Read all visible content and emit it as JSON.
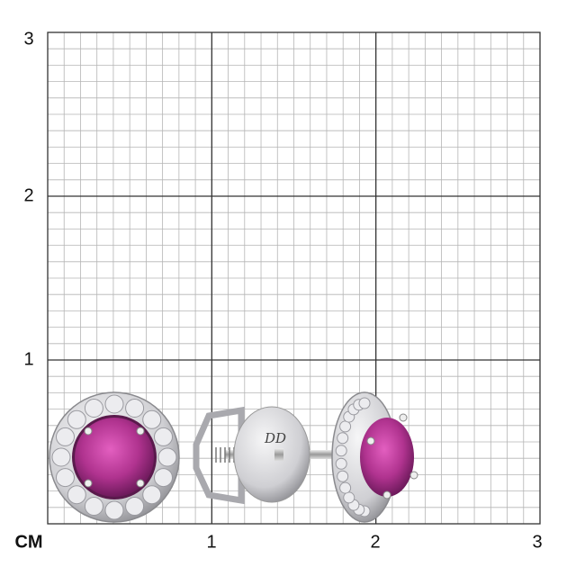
{
  "scale": {
    "unit_label": "CM",
    "x_labels": [
      "1",
      "2",
      "3"
    ],
    "y_labels": [
      "3",
      "2",
      "1"
    ],
    "minor_divisions_per_unit": 10
  },
  "product": {
    "engraving": "DD",
    "gem_color": "#b0338f",
    "metal_color": "#d9d9dc"
  }
}
